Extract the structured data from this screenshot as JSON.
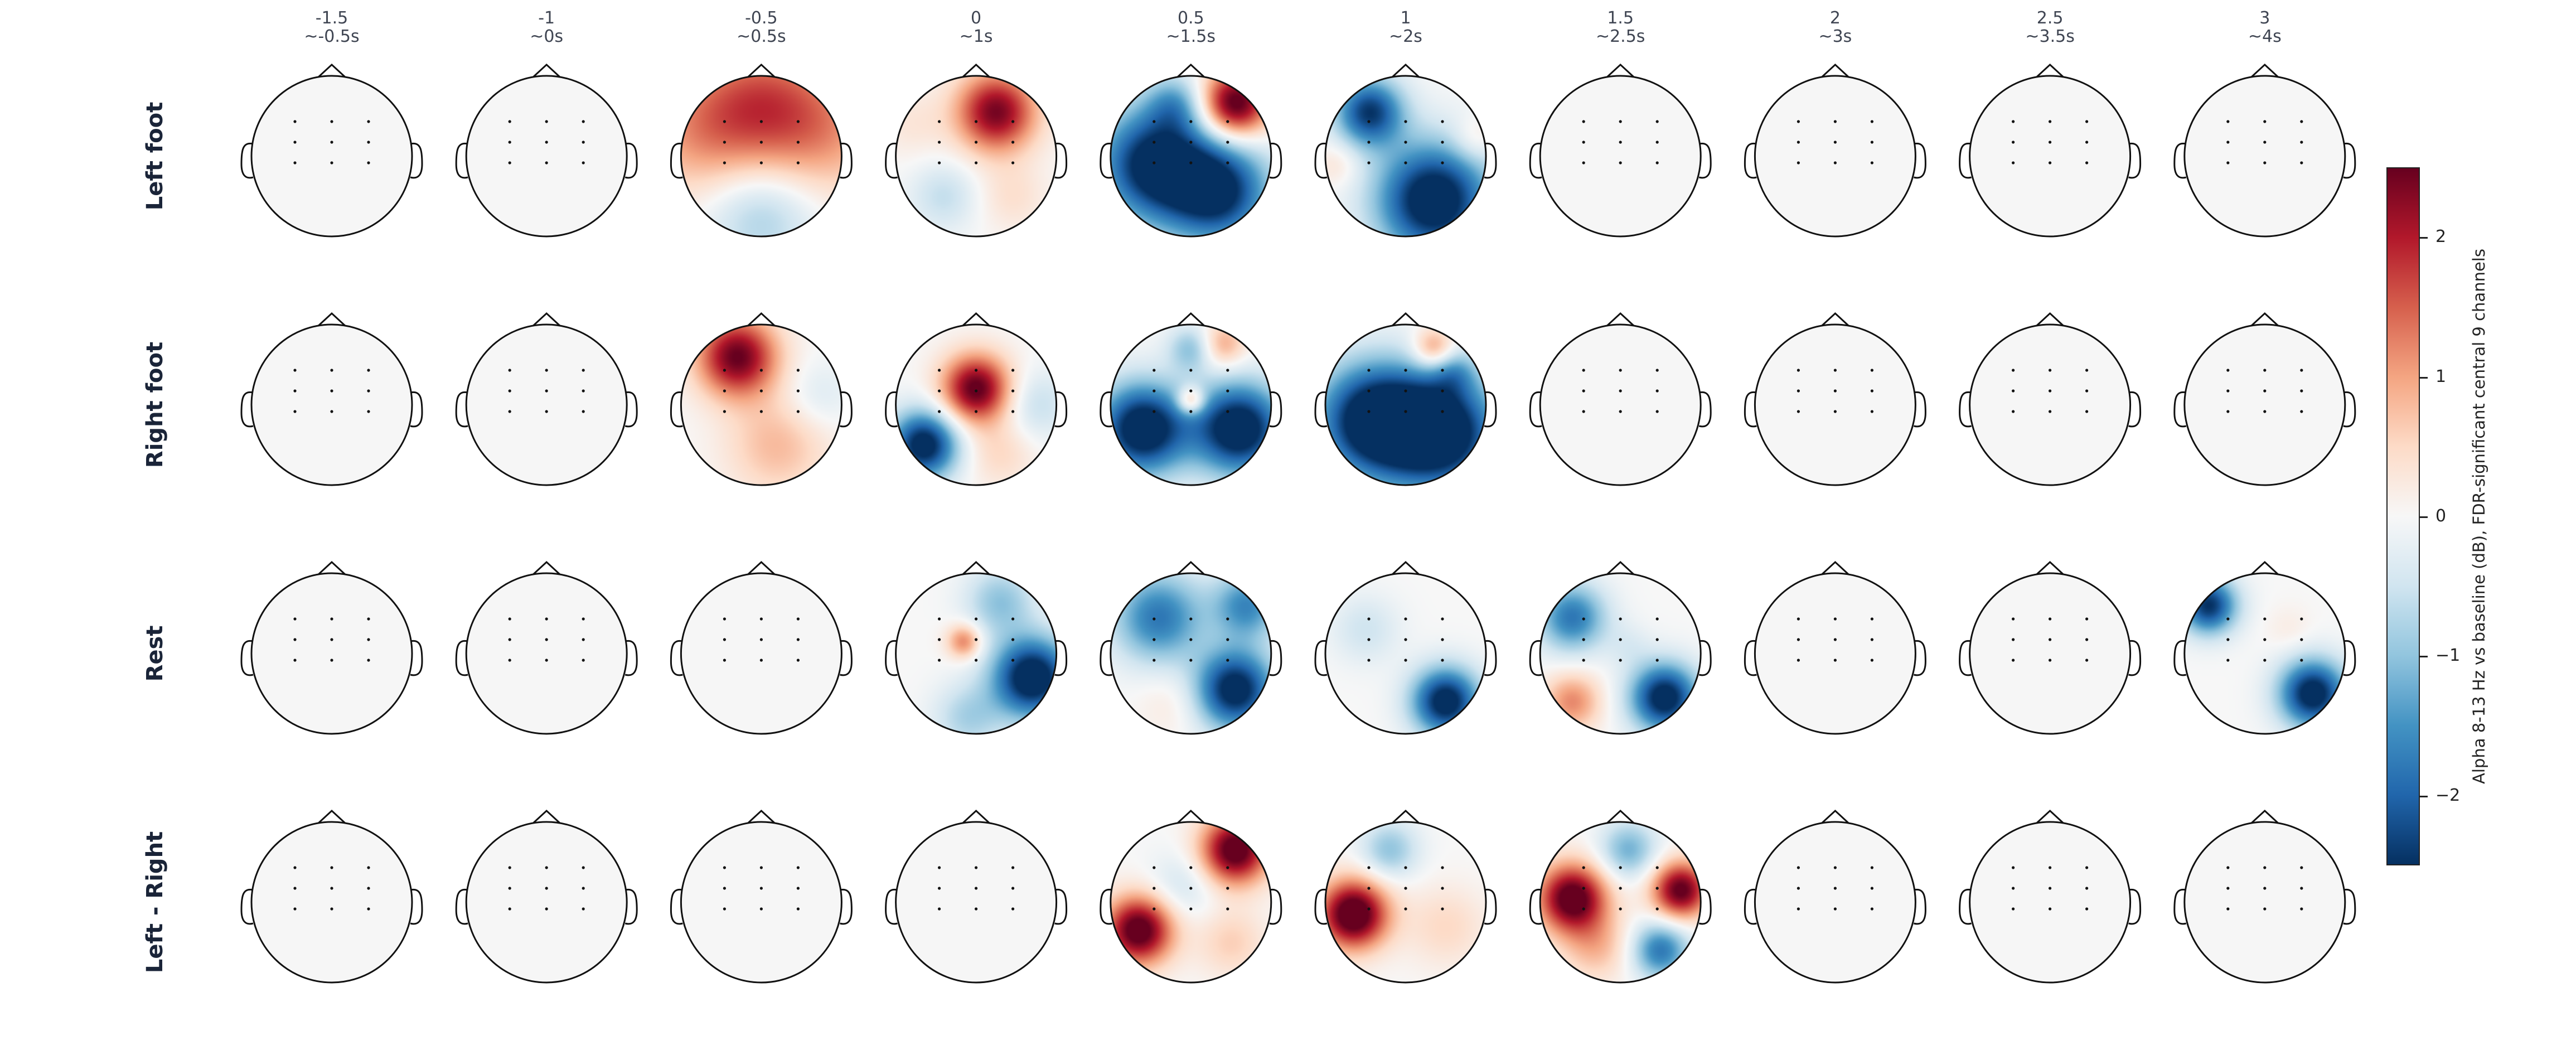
{
  "chart_data": {
    "type": "heatmap",
    "subtype": "eeg-topomap-grid",
    "columns": [
      {
        "offset": "-1.5",
        "approx": "~-0.5s"
      },
      {
        "offset": "-1",
        "approx": "~0s"
      },
      {
        "offset": "-0.5",
        "approx": "~0.5s"
      },
      {
        "offset": "0",
        "approx": "~1s"
      },
      {
        "offset": "0.5",
        "approx": "~1.5s"
      },
      {
        "offset": "1",
        "approx": "~2s"
      },
      {
        "offset": "1.5",
        "approx": "~2.5s"
      },
      {
        "offset": "2",
        "approx": "~3s"
      },
      {
        "offset": "2.5",
        "approx": "~3.5s"
      },
      {
        "offset": "3",
        "approx": "~4s"
      }
    ],
    "rows": [
      {
        "label": "Left foot",
        "maps": [
          [],
          [],
          [
            {
              "x": 0,
              "y": 0.65,
              "s": 0.6,
              "v": 1.3
            },
            {
              "x": -0.8,
              "y": 0.3,
              "s": 0.6,
              "v": 0.9
            },
            {
              "x": 0.8,
              "y": 0.3,
              "s": 0.6,
              "v": 0.9
            },
            {
              "x": 0,
              "y": -0.7,
              "s": 0.5,
              "v": -0.9
            }
          ],
          [
            {
              "x": 0.25,
              "y": 0.55,
              "s": 0.35,
              "v": 2.4
            },
            {
              "x": -0.4,
              "y": -0.5,
              "s": 0.3,
              "v": -0.6
            },
            {
              "x": 0.45,
              "y": -0.5,
              "s": 0.3,
              "v": 0.4
            },
            {
              "x": -0.8,
              "y": 0.4,
              "s": 0.3,
              "v": 0.3
            }
          ],
          [
            {
              "x": 0.55,
              "y": 0.65,
              "s": 0.3,
              "v": 2.8
            },
            {
              "x": -0.45,
              "y": -0.1,
              "s": 0.5,
              "v": -2.8
            },
            {
              "x": 0.35,
              "y": -0.45,
              "s": 0.45,
              "v": -2.5
            },
            {
              "x": -0.2,
              "y": 0.65,
              "s": 0.25,
              "v": -1.0
            }
          ],
          [
            {
              "x": -0.45,
              "y": 0.55,
              "s": 0.3,
              "v": -2.4
            },
            {
              "x": 0.35,
              "y": -0.55,
              "s": 0.5,
              "v": -3.0
            },
            {
              "x": 0.85,
              "y": 0.2,
              "s": 0.2,
              "v": 0.5
            },
            {
              "x": -0.85,
              "y": -0.1,
              "s": 0.2,
              "v": 0.4
            }
          ],
          [],
          [],
          [],
          []
        ]
      },
      {
        "label": "Right foot",
        "maps": [
          [],
          [],
          [
            {
              "x": -0.3,
              "y": 0.6,
              "s": 0.35,
              "v": 2.5
            },
            {
              "x": 0.2,
              "y": -0.5,
              "s": 0.45,
              "v": 0.8
            },
            {
              "x": 0.7,
              "y": 0.1,
              "s": 0.3,
              "v": -0.4
            }
          ],
          [
            {
              "x": 0,
              "y": 0.2,
              "s": 0.3,
              "v": 2.6
            },
            {
              "x": -0.65,
              "y": -0.5,
              "s": 0.3,
              "v": -2.8
            },
            {
              "x": 0.75,
              "y": 0,
              "s": 0.3,
              "v": -0.6
            },
            {
              "x": 0.3,
              "y": -0.6,
              "s": 0.3,
              "v": 0.5
            }
          ],
          [
            {
              "x": 0,
              "y": 0.05,
              "s": 0.12,
              "v": 1.5
            },
            {
              "x": -0.6,
              "y": -0.3,
              "s": 0.4,
              "v": -3.0
            },
            {
              "x": 0.6,
              "y": -0.3,
              "s": 0.4,
              "v": -3.0
            },
            {
              "x": 0.4,
              "y": 0.75,
              "s": 0.2,
              "v": 1.0
            },
            {
              "x": 0,
              "y": 0.7,
              "s": 0.2,
              "v": -1.0
            }
          ],
          [
            {
              "x": -0.4,
              "y": -0.2,
              "s": 0.5,
              "v": -3.0
            },
            {
              "x": 0.45,
              "y": -0.35,
              "s": 0.5,
              "v": -3.0
            },
            {
              "x": 0.35,
              "y": 0.7,
              "s": 0.18,
              "v": 1.3
            },
            {
              "x": 0.6,
              "y": 0.4,
              "s": 0.2,
              "v": -0.8
            }
          ],
          [],
          [],
          [],
          []
        ]
      },
      {
        "label": "Rest",
        "maps": [
          [],
          [],
          [],
          [
            {
              "x": -0.15,
              "y": 0.15,
              "s": 0.15,
              "v": 1.3
            },
            {
              "x": 0.7,
              "y": -0.3,
              "s": 0.35,
              "v": -3.0
            },
            {
              "x": 0.3,
              "y": 0.65,
              "s": 0.3,
              "v": -1.0
            },
            {
              "x": -0.1,
              "y": -0.8,
              "s": 0.3,
              "v": -0.8
            }
          ],
          [
            {
              "x": -0.4,
              "y": 0.45,
              "s": 0.4,
              "v": -1.8
            },
            {
              "x": 0.55,
              "y": -0.45,
              "s": 0.35,
              "v": -2.8
            },
            {
              "x": 0.7,
              "y": 0.6,
              "s": 0.3,
              "v": -1.6
            },
            {
              "x": -0.2,
              "y": -0.6,
              "s": 0.3,
              "v": 0.3
            }
          ],
          [
            {
              "x": 0.5,
              "y": -0.6,
              "s": 0.3,
              "v": -2.8
            },
            {
              "x": -0.5,
              "y": 0.3,
              "s": 0.3,
              "v": -0.5
            }
          ],
          [
            {
              "x": -0.6,
              "y": 0.45,
              "s": 0.3,
              "v": -1.8
            },
            {
              "x": 0.55,
              "y": -0.55,
              "s": 0.3,
              "v": -2.8
            },
            {
              "x": -0.6,
              "y": -0.6,
              "s": 0.25,
              "v": 1.2
            },
            {
              "x": 0.1,
              "y": 0.1,
              "s": 0.2,
              "v": -0.3
            }
          ],
          [],
          [],
          [
            {
              "x": -0.7,
              "y": 0.6,
              "s": 0.25,
              "v": -2.5
            },
            {
              "x": 0.6,
              "y": -0.5,
              "s": 0.3,
              "v": -2.8
            },
            {
              "x": 0.3,
              "y": 0.3,
              "s": 0.2,
              "v": 0.2
            }
          ]
        ]
      },
      {
        "label": "Left - Right",
        "maps": [
          [],
          [],
          [],
          [],
          [
            {
              "x": 0.55,
              "y": 0.65,
              "s": 0.3,
              "v": 2.8
            },
            {
              "x": -0.65,
              "y": -0.35,
              "s": 0.3,
              "v": 2.8
            },
            {
              "x": 0.5,
              "y": -0.5,
              "s": 0.3,
              "v": 0.6
            },
            {
              "x": -0.1,
              "y": 0.2,
              "s": 0.3,
              "v": -0.5
            }
          ],
          [
            {
              "x": -0.65,
              "y": -0.15,
              "s": 0.3,
              "v": 3.0
            },
            {
              "x": -0.2,
              "y": 0.65,
              "s": 0.25,
              "v": -1.0
            },
            {
              "x": 0.5,
              "y": -0.3,
              "s": 0.35,
              "v": 0.5
            }
          ],
          [
            {
              "x": -0.6,
              "y": 0.05,
              "s": 0.3,
              "v": 2.8
            },
            {
              "x": 0.75,
              "y": 0.15,
              "s": 0.25,
              "v": 2.6
            },
            {
              "x": 0.5,
              "y": -0.6,
              "s": 0.25,
              "v": -1.8
            },
            {
              "x": 0.1,
              "y": 0.65,
              "s": 0.25,
              "v": -1.2
            },
            {
              "x": -0.3,
              "y": -0.55,
              "s": 0.3,
              "v": 0.8
            }
          ],
          [],
          [],
          []
        ]
      }
    ],
    "colorbar": {
      "label": "Alpha 8-13 Hz vs baseline (dB), FDR-significant central 9 channels",
      "vmin": -2.5,
      "vmax": 2.5,
      "ticks": [
        "2",
        "1",
        "0",
        "−1",
        "−2"
      ],
      "tick_values": [
        2,
        1,
        0,
        -1,
        -2
      ],
      "colormap": "RdBu_r"
    },
    "colors": {
      "neutral_fill": "#f6f6f6",
      "outline": "#111111"
    }
  }
}
